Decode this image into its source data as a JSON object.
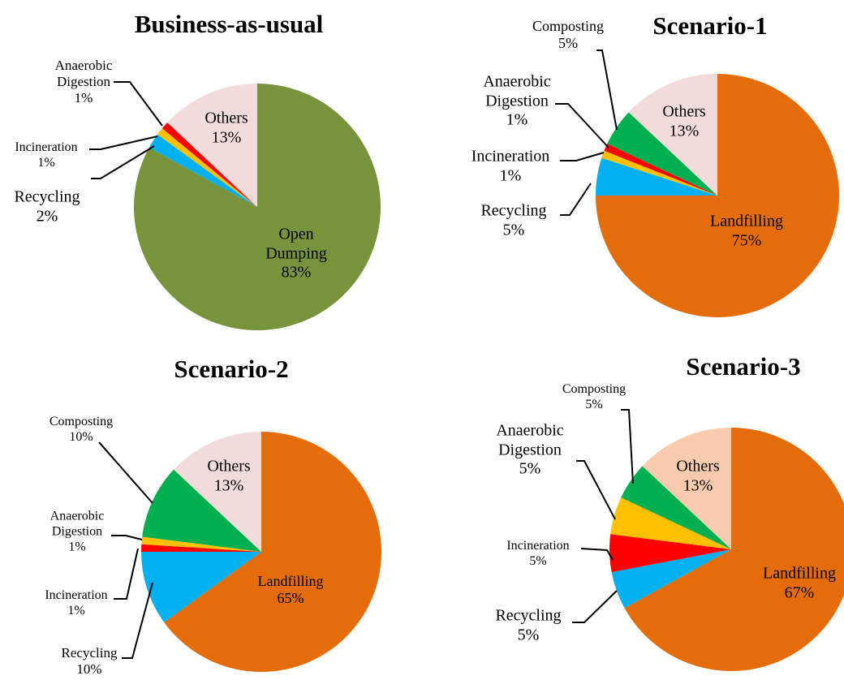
{
  "chart_data": [
    {
      "type": "pie",
      "title": "Business-as-usual",
      "categories": [
        "Open Dumping",
        "Recycling",
        "Incineration",
        "Anaerobic Digestion",
        "Others"
      ],
      "values": [
        83,
        2,
        1,
        1,
        13
      ],
      "value_labels": [
        "83%",
        "2%",
        "1%",
        "1%",
        "13%"
      ],
      "colors": [
        "#77933c",
        "#00b0f0",
        "#ffc000",
        "#ff0000",
        "#f2dcdb"
      ]
    },
    {
      "type": "pie",
      "title": "Scenario-1",
      "categories": [
        "Landfilling",
        "Recycling",
        "Incineration",
        "Anaerobic Digestion",
        "Composting",
        "Others"
      ],
      "values": [
        75,
        5,
        1,
        1,
        5,
        13
      ],
      "value_labels": [
        "75%",
        "5%",
        "1%",
        "1%",
        "5%",
        "13%"
      ],
      "colors": [
        "#e46c0a",
        "#00b0f0",
        "#ffc000",
        "#ff0000",
        "#00b050",
        "#f2dcdb"
      ]
    },
    {
      "type": "pie",
      "title": "Scenario-2",
      "categories": [
        "Landfilling",
        "Recycling",
        "Incineration",
        "Anaerobic Digestion",
        "Composting",
        "Others"
      ],
      "values": [
        65,
        10,
        1,
        1,
        10,
        13
      ],
      "value_labels": [
        "65%",
        "10%",
        "1%",
        "1%",
        "10%",
        "13%"
      ],
      "colors": [
        "#e46c0a",
        "#00b0f0",
        "#ff0000",
        "#ffc000",
        "#00b050",
        "#f2dcdb"
      ]
    },
    {
      "type": "pie",
      "title": "Scenario-3",
      "categories": [
        "Landfilling",
        "Recycling",
        "Incineration",
        "Anaerobic Digestion",
        "Composting",
        "Others"
      ],
      "values": [
        67,
        5,
        5,
        5,
        5,
        13
      ],
      "value_labels": [
        "67%",
        "5%",
        "5%",
        "5%",
        "5%",
        "13%"
      ],
      "colors": [
        "#e46c0a",
        "#00b0f0",
        "#ff0000",
        "#ffc000",
        "#00b050",
        "#f8cbad"
      ]
    }
  ]
}
